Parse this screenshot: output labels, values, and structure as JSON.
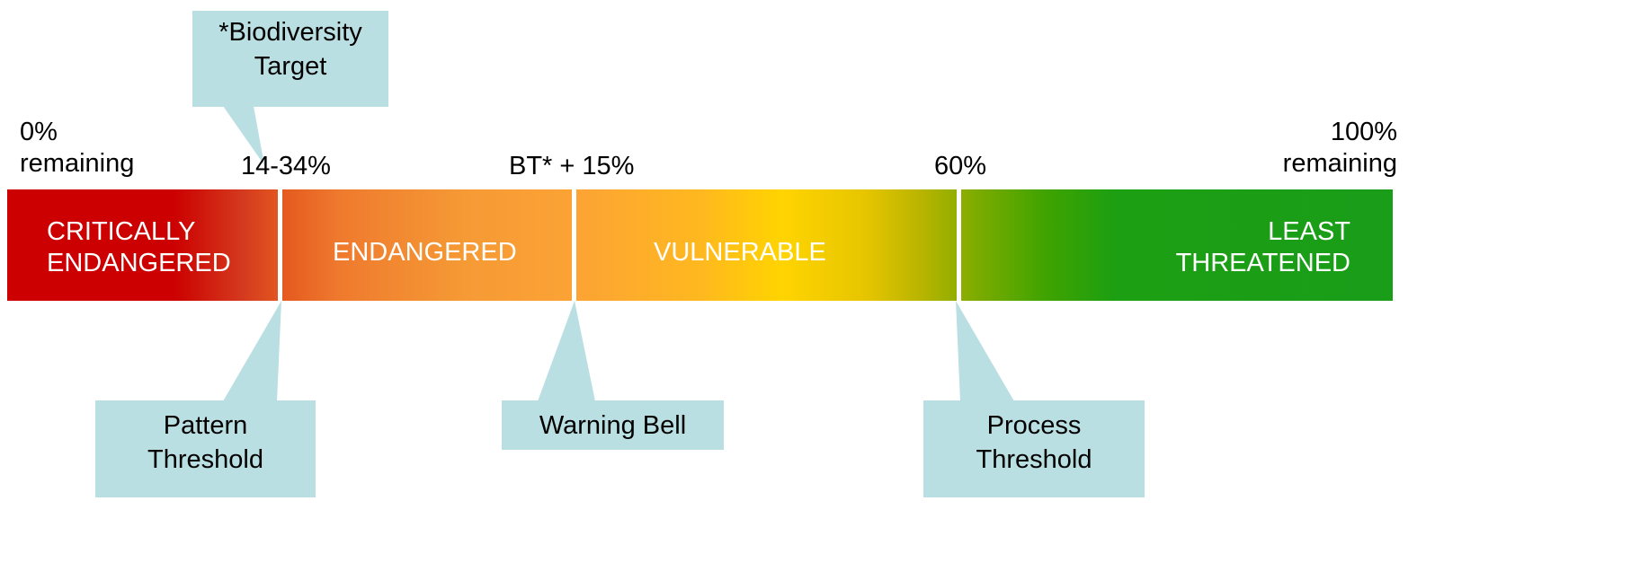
{
  "ends": {
    "left_pct": "0%",
    "left_word": "remaining",
    "right_pct": "100%",
    "right_word": "remaining"
  },
  "markers": {
    "pattern_pct": "14-34%",
    "bell_pct": "BT* + 15%",
    "process_pct": "60%"
  },
  "categories": {
    "critically_line1": "CRITICALLY",
    "critically_line2": "ENDANGERED",
    "endangered": "ENDANGERED",
    "vulnerable": "VULNERABLE",
    "least_line1": "LEAST",
    "least_line2": "THREATENED"
  },
  "callouts": {
    "biodiversity_line1": "*Biodiversity",
    "biodiversity_line2": "Target",
    "pattern_line1": "Pattern",
    "pattern_line2": "Threshold",
    "warning_bell": "Warning Bell",
    "process_line1": "Process",
    "process_line2": "Threshold"
  },
  "colors": {
    "critically_endangered": "#cc0000",
    "endangered": "#f59a35",
    "vulnerable": "#ffd400",
    "least_threatened": "#1a9e1a",
    "callout_fill": "#badfe3"
  }
}
